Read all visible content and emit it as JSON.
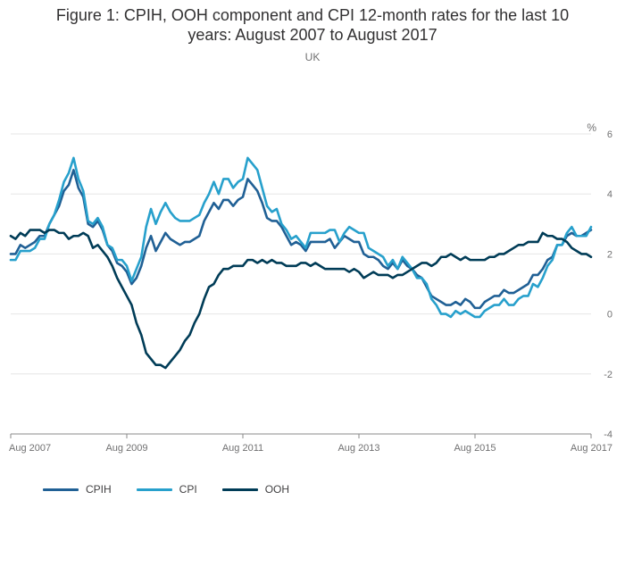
{
  "title_line1": "Figure 1: CPIH, OOH component and CPI 12-month rates for the last 10",
  "title_line2": "years: August 2007 to August 2017",
  "subtitle": "UK",
  "chart_data": {
    "type": "line",
    "title": "Figure 1: CPIH, OOH component and CPI 12-month rates for the last 10 years: August 2007 to August 2017",
    "subtitle": "UK",
    "ylabel": "%",
    "xlabel": "",
    "ylim": [
      -4,
      6
    ],
    "yticks": [
      "6",
      "4",
      "2",
      "0",
      "-2",
      "-4"
    ],
    "ytick_values": [
      6,
      4,
      2,
      0,
      -2,
      -4
    ],
    "xticks": [
      "Aug 2007",
      "Aug 2009",
      "Aug 2011",
      "Aug 2013",
      "Aug 2015",
      "Aug 2017"
    ],
    "xtick_index": [
      0,
      24,
      48,
      72,
      96,
      120
    ],
    "x_start": "Aug 2007",
    "x_end": "Aug 2017",
    "x_frequency": "monthly",
    "grid": true,
    "legend_position": "bottom-left",
    "series": [
      {
        "name": "CPIH",
        "color": "#206095",
        "values": [
          2.0,
          2.0,
          2.3,
          2.2,
          2.3,
          2.4,
          2.6,
          2.6,
          3.0,
          3.3,
          3.6,
          4.1,
          4.3,
          4.8,
          4.2,
          3.9,
          3.0,
          2.9,
          3.1,
          2.8,
          2.3,
          2.1,
          1.7,
          1.6,
          1.4,
          1.0,
          1.2,
          1.6,
          2.2,
          2.6,
          2.1,
          2.4,
          2.7,
          2.5,
          2.4,
          2.3,
          2.4,
          2.4,
          2.5,
          2.6,
          3.1,
          3.4,
          3.7,
          3.5,
          3.8,
          3.8,
          3.6,
          3.8,
          3.9,
          4.5,
          4.3,
          4.1,
          3.7,
          3.2,
          3.1,
          3.1,
          2.9,
          2.6,
          2.3,
          2.4,
          2.3,
          2.1,
          2.4,
          2.4,
          2.4,
          2.4,
          2.5,
          2.2,
          2.4,
          2.6,
          2.5,
          2.4,
          2.4,
          2.0,
          1.9,
          1.9,
          1.8,
          1.6,
          1.5,
          1.7,
          1.5,
          1.8,
          1.6,
          1.5,
          1.3,
          1.2,
          0.9,
          0.6,
          0.5,
          0.4,
          0.3,
          0.3,
          0.4,
          0.3,
          0.5,
          0.4,
          0.2,
          0.2,
          0.4,
          0.5,
          0.6,
          0.6,
          0.8,
          0.7,
          0.7,
          0.8,
          0.9,
          1.0,
          1.3,
          1.3,
          1.5,
          1.8,
          1.9,
          2.3,
          2.3,
          2.6,
          2.7,
          2.6,
          2.6,
          2.7,
          2.8
        ]
      },
      {
        "name": "CPI",
        "color": "#27a0cc",
        "values": [
          1.8,
          1.8,
          2.1,
          2.1,
          2.1,
          2.2,
          2.5,
          2.5,
          3.0,
          3.3,
          3.8,
          4.4,
          4.7,
          5.2,
          4.5,
          4.1,
          3.1,
          3.0,
          3.2,
          2.9,
          2.3,
          2.2,
          1.8,
          1.8,
          1.6,
          1.1,
          1.5,
          1.9,
          2.9,
          3.5,
          3.0,
          3.4,
          3.7,
          3.4,
          3.2,
          3.1,
          3.1,
          3.1,
          3.2,
          3.3,
          3.7,
          4.0,
          4.4,
          4.0,
          4.5,
          4.5,
          4.2,
          4.4,
          4.5,
          5.2,
          5.0,
          4.8,
          4.2,
          3.6,
          3.4,
          3.5,
          3.0,
          2.8,
          2.5,
          2.6,
          2.4,
          2.2,
          2.7,
          2.7,
          2.7,
          2.7,
          2.8,
          2.8,
          2.4,
          2.7,
          2.9,
          2.8,
          2.7,
          2.7,
          2.2,
          2.1,
          2.0,
          1.9,
          1.6,
          1.8,
          1.5,
          1.9,
          1.7,
          1.5,
          1.2,
          1.2,
          1.0,
          0.5,
          0.3,
          0.0,
          0.0,
          -0.1,
          0.1,
          0.0,
          0.1,
          0.0,
          -0.1,
          -0.1,
          0.1,
          0.2,
          0.3,
          0.3,
          0.5,
          0.3,
          0.3,
          0.5,
          0.6,
          0.6,
          1.0,
          0.9,
          1.2,
          1.6,
          1.8,
          2.3,
          2.3,
          2.7,
          2.9,
          2.6,
          2.6,
          2.6,
          2.9
        ]
      },
      {
        "name": "OOH",
        "color": "#003c57",
        "values": [
          2.6,
          2.5,
          2.7,
          2.6,
          2.8,
          2.8,
          2.8,
          2.7,
          2.8,
          2.8,
          2.7,
          2.7,
          2.5,
          2.6,
          2.6,
          2.7,
          2.6,
          2.2,
          2.3,
          2.1,
          1.9,
          1.6,
          1.2,
          0.9,
          0.6,
          0.3,
          -0.3,
          -0.7,
          -1.3,
          -1.5,
          -1.7,
          -1.7,
          -1.8,
          -1.6,
          -1.4,
          -1.2,
          -0.9,
          -0.7,
          -0.3,
          0.0,
          0.5,
          0.9,
          1.0,
          1.3,
          1.5,
          1.5,
          1.6,
          1.6,
          1.6,
          1.8,
          1.8,
          1.7,
          1.8,
          1.7,
          1.8,
          1.7,
          1.7,
          1.6,
          1.6,
          1.6,
          1.7,
          1.7,
          1.6,
          1.7,
          1.6,
          1.5,
          1.5,
          1.5,
          1.5,
          1.5,
          1.4,
          1.5,
          1.4,
          1.2,
          1.3,
          1.4,
          1.3,
          1.3,
          1.3,
          1.2,
          1.3,
          1.3,
          1.4,
          1.5,
          1.6,
          1.7,
          1.7,
          1.6,
          1.7,
          1.9,
          1.9,
          2.0,
          1.9,
          1.8,
          1.9,
          1.8,
          1.8,
          1.8,
          1.8,
          1.9,
          1.9,
          2.0,
          2.0,
          2.1,
          2.2,
          2.3,
          2.3,
          2.4,
          2.4,
          2.4,
          2.7,
          2.6,
          2.6,
          2.5,
          2.5,
          2.4,
          2.2,
          2.1,
          2.0,
          2.0,
          1.9
        ]
      }
    ]
  }
}
